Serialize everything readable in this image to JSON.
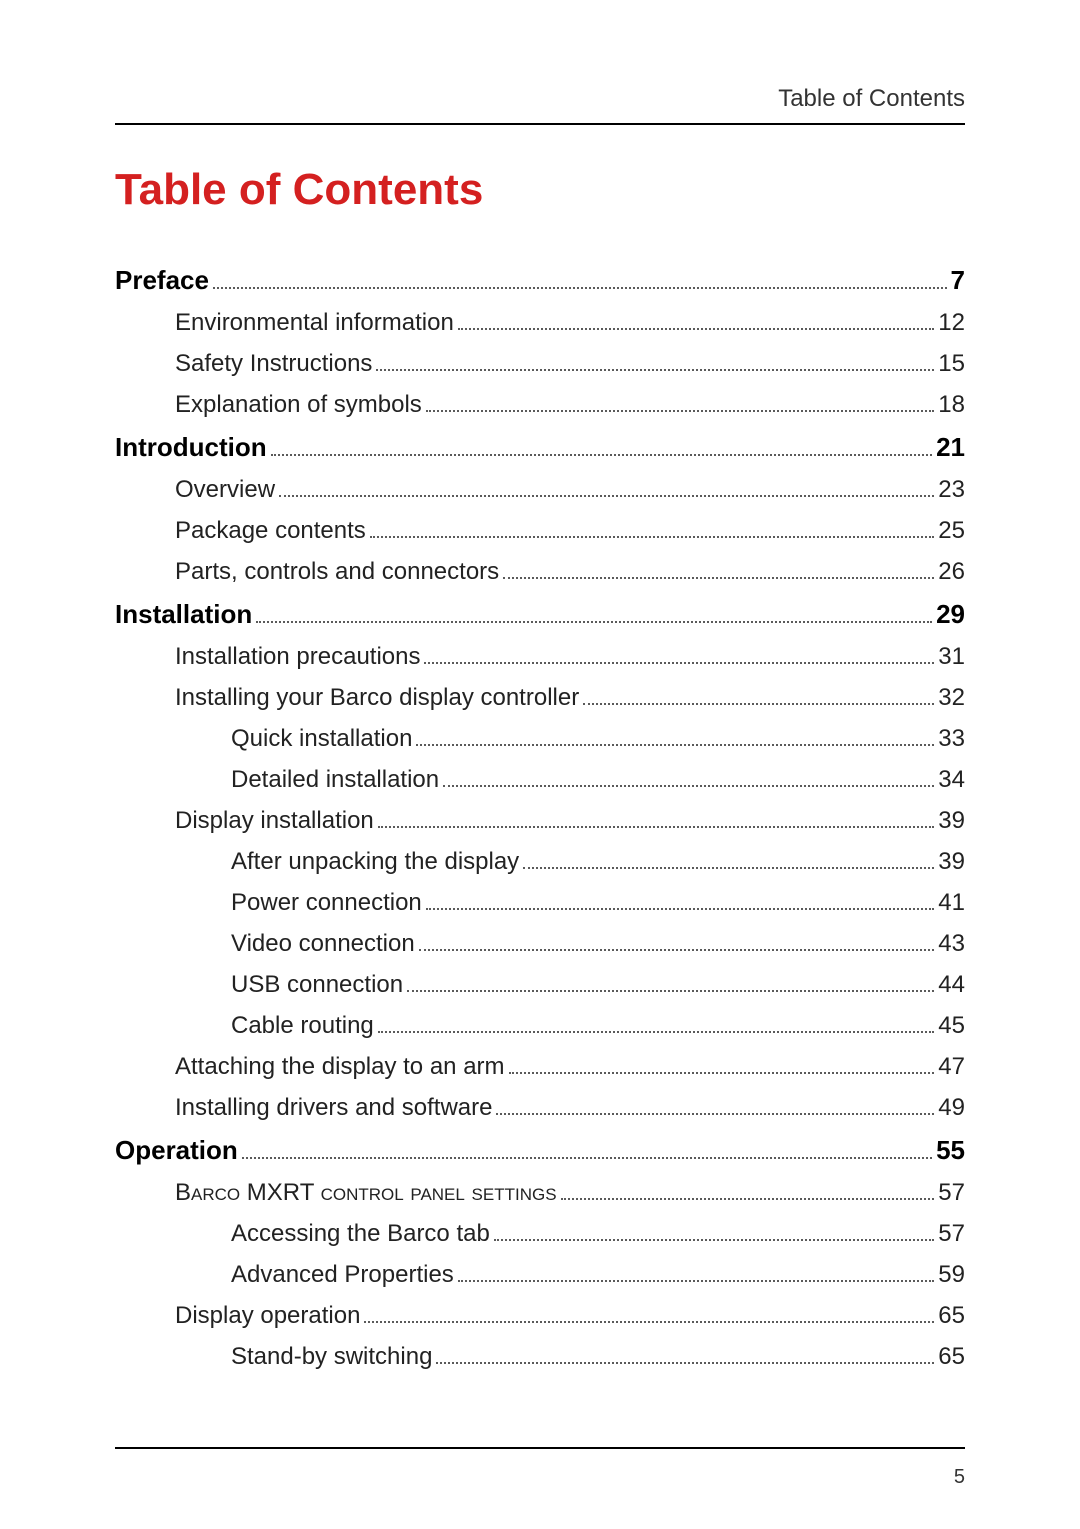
{
  "header_label": "Table of Contents",
  "main_title": "Table of Contents",
  "page_number": "5",
  "toc": [
    {
      "level": 0,
      "label": "Preface",
      "page": "7",
      "smallcaps": false
    },
    {
      "level": 1,
      "label": "Environmental information",
      "page": "12",
      "smallcaps": false
    },
    {
      "level": 1,
      "label": "Safety Instructions",
      "page": "15",
      "smallcaps": false
    },
    {
      "level": 1,
      "label": "Explanation of symbols",
      "page": "18",
      "smallcaps": false
    },
    {
      "level": 0,
      "label": "Introduction",
      "page": "21",
      "smallcaps": false
    },
    {
      "level": 1,
      "label": "Overview",
      "page": "23",
      "smallcaps": false
    },
    {
      "level": 1,
      "label": "Package contents",
      "page": "25",
      "smallcaps": false
    },
    {
      "level": 1,
      "label": "Parts, controls and connectors",
      "page": "26",
      "smallcaps": false
    },
    {
      "level": 0,
      "label": "Installation",
      "page": "29",
      "smallcaps": false
    },
    {
      "level": 1,
      "label": "Installation precautions",
      "page": "31",
      "smallcaps": false
    },
    {
      "level": 1,
      "label": "Installing your Barco display controller",
      "page": "32",
      "smallcaps": false
    },
    {
      "level": 2,
      "label": "Quick installation",
      "page": "33",
      "smallcaps": false
    },
    {
      "level": 2,
      "label": "Detailed installation",
      "page": "34",
      "smallcaps": false
    },
    {
      "level": 1,
      "label": "Display installation",
      "page": "39",
      "smallcaps": false
    },
    {
      "level": 2,
      "label": "After unpacking the display",
      "page": "39",
      "smallcaps": false
    },
    {
      "level": 2,
      "label": "Power connection",
      "page": "41",
      "smallcaps": false
    },
    {
      "level": 2,
      "label": "Video connection",
      "page": "43",
      "smallcaps": false
    },
    {
      "level": 2,
      "label": "USB connection",
      "page": "44",
      "smallcaps": false
    },
    {
      "level": 2,
      "label": "Cable routing",
      "page": "45",
      "smallcaps": false
    },
    {
      "level": 1,
      "label": "Attaching the display to an arm",
      "page": "47",
      "smallcaps": false
    },
    {
      "level": 1,
      "label": "Installing drivers and software",
      "page": "49",
      "smallcaps": false
    },
    {
      "level": 0,
      "label": "Operation",
      "page": "55",
      "smallcaps": false
    },
    {
      "level": 1,
      "label": "Barco MXRT control panel settings",
      "page": "57",
      "smallcaps": true
    },
    {
      "level": 2,
      "label": "Accessing the Barco tab",
      "page": "57",
      "smallcaps": false
    },
    {
      "level": 2,
      "label": "Advanced Properties",
      "page": "59",
      "smallcaps": false
    },
    {
      "level": 1,
      "label": "Display operation",
      "page": "65",
      "smallcaps": false
    },
    {
      "level": 2,
      "label": "Stand-by switching",
      "page": "65",
      "smallcaps": false
    }
  ],
  "colors": {
    "title": "#d42020",
    "text": "#222222",
    "rule": "#000000",
    "background": "#ffffff"
  },
  "typography": {
    "title_fontsize": 44,
    "level0_fontsize": 26,
    "level1_fontsize": 24,
    "level2_fontsize": 24,
    "header_fontsize": 24,
    "pagenum_fontsize": 20,
    "font_family": "Trebuchet MS"
  }
}
